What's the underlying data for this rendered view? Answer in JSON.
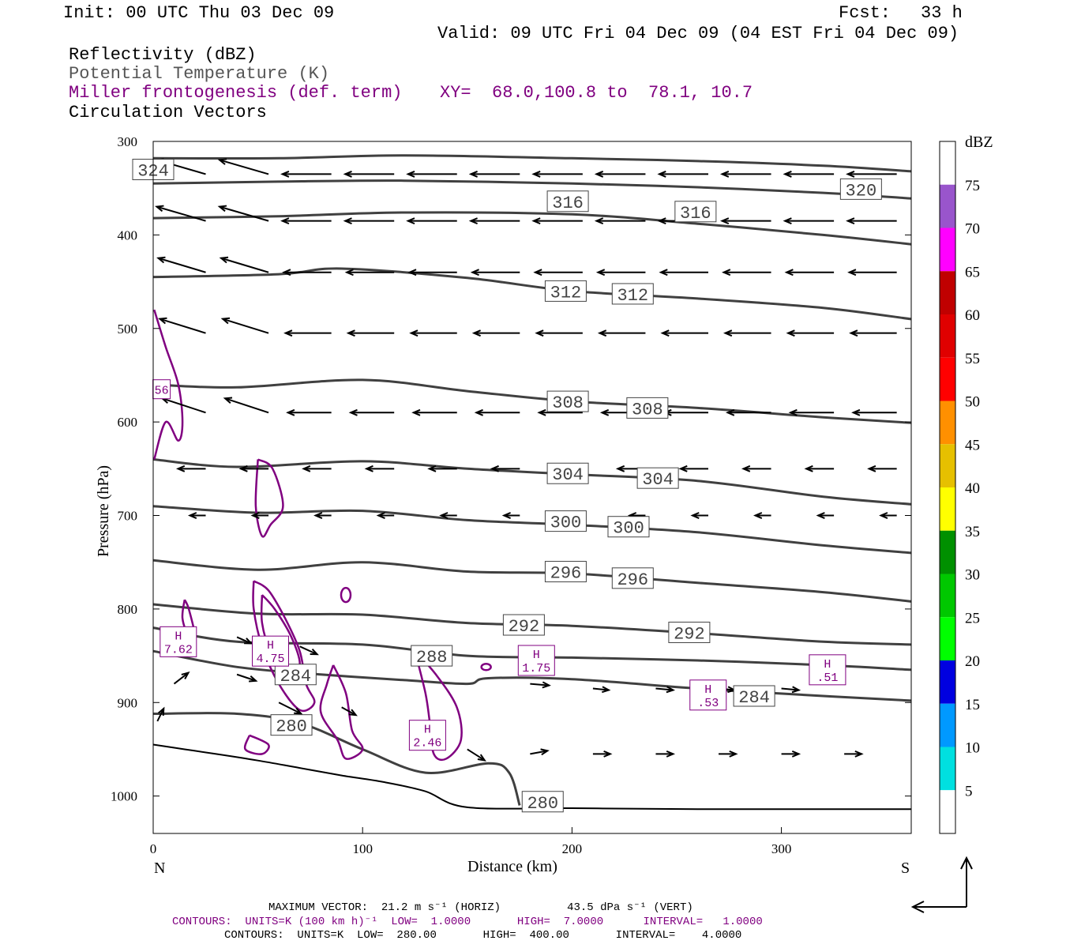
{
  "header": {
    "init": "Init: 00 UTC Thu 03 Dec 09",
    "fcst_label": "Fcst:",
    "fcst_value": "33 h",
    "valid": "Valid: 09 UTC Fri 04 Dec 09 (04 EST Fri 04 Dec 09)",
    "field1": "Reflectivity (dBZ)",
    "field2": "Potential Temperature (K)",
    "field3": "Miller frontogenesis (def. term)",
    "xy": "XY=  68.0,100.8 to  78.1, 10.7",
    "field4": "Circulation Vectors"
  },
  "colors": {
    "theta": "#404040",
    "fronto": "#800080",
    "vectors": "#000000"
  },
  "chart_data": {
    "type": "line",
    "title": "",
    "xlabel": "Distance (km)",
    "ylabel": "Pressure (hPa)",
    "xlim": [
      0,
      362
    ],
    "ylim": [
      1040,
      300
    ],
    "y_inverted": true,
    "x_ticks": [
      "0",
      "100",
      "200",
      "300"
    ],
    "y_ticks": [
      "300",
      "400",
      "500",
      "600",
      "700",
      "800",
      "900",
      "1000"
    ],
    "left_end": "N",
    "right_end": "S",
    "theta_series": [
      {
        "name": "324",
        "label_at": [
          [
            0,
            330
          ]
        ],
        "x": [
          0,
          60,
          120,
          200,
          260,
          320,
          362
        ],
        "y": [
          318,
          318,
          315,
          318,
          321,
          326,
          332
        ]
      },
      {
        "name": "320",
        "label_at": [
          [
            338,
            351
          ]
        ],
        "x": [
          0,
          60,
          120,
          200,
          260,
          320,
          362
        ],
        "y": [
          345,
          343,
          342,
          345,
          349,
          355,
          361
        ]
      },
      {
        "name": "316",
        "label_at": [
          [
            198,
            364
          ],
          [
            259,
            375
          ]
        ],
        "x": [
          0,
          60,
          120,
          200,
          260,
          320,
          362
        ],
        "y": [
          382,
          380,
          376,
          378,
          388,
          400,
          410
        ]
      },
      {
        "name": "312",
        "label_at": [
          [
            197,
            460
          ],
          [
            229,
            463
          ]
        ],
        "x": [
          0,
          60,
          90,
          150,
          200,
          260,
          320,
          362
        ],
        "y": [
          445,
          442,
          436,
          446,
          460,
          468,
          478,
          490
        ]
      },
      {
        "name": "308",
        "label_at": [
          [
            198,
            578
          ],
          [
            236,
            585
          ]
        ],
        "x": [
          0,
          40,
          100,
          150,
          200,
          260,
          320,
          362
        ],
        "y": [
          560,
          563,
          555,
          567,
          578,
          585,
          595,
          601
        ]
      },
      {
        "name": "304",
        "label_at": [
          [
            198,
            655
          ],
          [
            241,
            660
          ]
        ],
        "x": [
          0,
          40,
          100,
          150,
          200,
          260,
          320,
          362
        ],
        "y": [
          640,
          648,
          642,
          650,
          656,
          663,
          680,
          688
        ]
      },
      {
        "name": "300",
        "label_at": [
          [
            197,
            706
          ],
          [
            227,
            712
          ]
        ],
        "x": [
          0,
          50,
          100,
          150,
          200,
          260,
          320,
          362
        ],
        "y": [
          690,
          697,
          695,
          705,
          710,
          718,
          732,
          740
        ]
      },
      {
        "name": "296",
        "label_at": [
          [
            197,
            760
          ],
          [
            229,
            767
          ]
        ],
        "x": [
          0,
          50,
          100,
          150,
          200,
          260,
          320,
          362
        ],
        "y": [
          748,
          758,
          750,
          760,
          762,
          772,
          782,
          792
        ]
      },
      {
        "name": "292",
        "label_at": [
          [
            177,
            817
          ],
          [
            256,
            825
          ]
        ],
        "x": [
          0,
          50,
          100,
          150,
          200,
          260,
          320,
          362
        ],
        "y": [
          795,
          805,
          806,
          815,
          818,
          826,
          835,
          838
        ]
      },
      {
        "name": "288",
        "label_at": [
          [
            133,
            850
          ]
        ],
        "x": [
          0,
          40,
          100,
          150,
          200,
          260,
          320,
          362
        ],
        "y": [
          820,
          835,
          838,
          850,
          852,
          855,
          860,
          865
        ]
      },
      {
        "name": "284",
        "label_at": [
          [
            68,
            870
          ],
          [
            287,
            893
          ]
        ],
        "x": [
          0,
          40,
          80,
          120,
          150,
          160,
          200,
          260,
          320,
          362
        ],
        "y": [
          845,
          862,
          870,
          876,
          880,
          874,
          875,
          885,
          893,
          898
        ]
      },
      {
        "name": "280",
        "label_at": [
          [
            66,
            924
          ],
          [
            186,
            1006
          ]
        ],
        "x": [
          0,
          40,
          70,
          100,
          130,
          160,
          170,
          175
        ],
        "y": [
          912,
          912,
          922,
          950,
          975,
          965,
          975,
          1010
        ]
      }
    ],
    "fronto_highs": [
      {
        "label": "H",
        "value": "7.62",
        "x": 12,
        "p": 835
      },
      {
        "label": "H",
        "value": "4.75",
        "x": 56,
        "p": 845
      },
      {
        "label": "H",
        "value": "1.75",
        "x": 183,
        "p": 855
      },
      {
        "label": "H",
        "value": ".51",
        "x": 322,
        "p": 865
      },
      {
        "label": "H",
        "value": ".53",
        "x": 265,
        "p": 892
      },
      {
        "label": "H",
        "value": "2.46",
        "x": 131,
        "p": 935
      },
      {
        "label": "",
        "value": "56",
        "x": 4,
        "p": 565
      }
    ],
    "colorbar": {
      "unit": "dBZ",
      "levels": [
        "5",
        "10",
        "15",
        "20",
        "25",
        "30",
        "35",
        "40",
        "45",
        "50",
        "55",
        "60",
        "65",
        "70",
        "75"
      ],
      "colors": [
        "#ffffff",
        "#00e0e0",
        "#0099ff",
        "#0000e0",
        "#00ff00",
        "#00c800",
        "#009000",
        "#ffff00",
        "#e6c000",
        "#ff9000",
        "#ff0000",
        "#e00000",
        "#c00000",
        "#ff00ff",
        "#9955cc",
        "#ffffff"
      ]
    },
    "grid": false
  },
  "footer": {
    "max_vector": "MAXIMUM VECTOR:  21.2 m s⁻¹ (HORIZ)          43.5 dPa s⁻¹ (VERT)",
    "contours1": "CONTOURS:  UNITS=K (100 km h)⁻¹  LOW=  1.0000       HIGH=  7.0000      INTERVAL=   1.0000",
    "contours2": "CONTOURS:  UNITS=K  LOW=  280.00       HIGH=  400.00       INTERVAL=    4.0000"
  }
}
